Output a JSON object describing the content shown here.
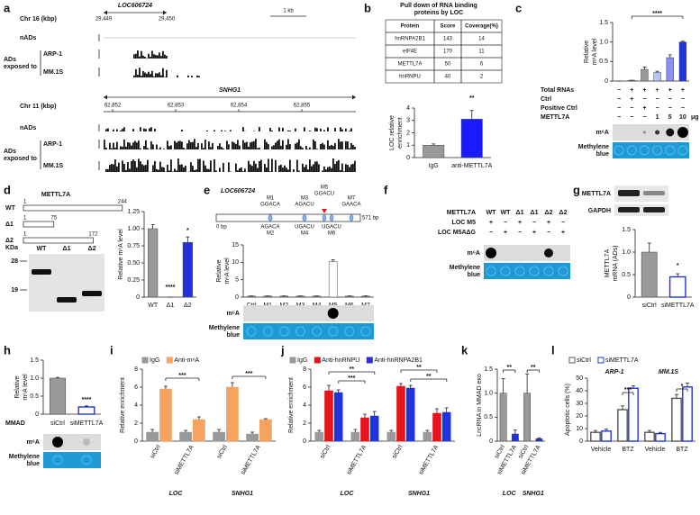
{
  "a": {
    "letter": "a",
    "gene1": "LOC606724",
    "chr1": "Chr 16 (kbp)",
    "coords1": [
      "29,449",
      "29,450"
    ],
    "scale": "1 kb",
    "tracks1": {
      "nads": "nADs",
      "ads": [
        "ADs",
        "exposed to"
      ],
      "lines": [
        "ARP-1",
        "MM.1S"
      ]
    },
    "gene2": "SNHG1",
    "chr2": "Chr 11 (kbp)",
    "coords2": [
      "62,852",
      "62,853",
      "62,854",
      "62,855"
    ],
    "tracks2": {
      "nads": "nADs",
      "ads": [
        "ADs",
        "exposed to"
      ],
      "lines": [
        "ARP-1",
        "MM.1S"
      ]
    }
  },
  "b": {
    "letter": "b",
    "title": [
      "Pull down of RNA binding",
      "proteins by LOC"
    ],
    "table": {
      "header": [
        "Protein",
        "Score",
        "Coverage(%)"
      ],
      "rows": [
        [
          "hnRNPA2B1",
          143,
          14
        ],
        [
          "eIF4E",
          170,
          11
        ],
        [
          "METTL7A",
          50,
          6
        ],
        [
          "hnRNPU",
          40,
          2
        ]
      ]
    },
    "chart": {
      "type": "bar",
      "ylabel": [
        "LOC relative",
        "enrichment"
      ],
      "categories": [
        "IgG",
        "anti-METTL7A"
      ],
      "values": [
        1,
        3.1
      ],
      "errors": [
        0.1,
        0.7
      ],
      "colors": [
        "#999999",
        "#1a1aff"
      ],
      "ylim": [
        0,
        4
      ],
      "yticks": [
        0,
        1,
        2,
        3,
        4
      ],
      "annotations": [
        "**"
      ]
    }
  },
  "c": {
    "letter": "c",
    "chart": {
      "type": "bar",
      "ylabel": [
        "Relative",
        "m⁶A level"
      ],
      "values": [
        0,
        0.02,
        0.3,
        0.22,
        0.6,
        1.0
      ],
      "errors": [
        0,
        0,
        0.06,
        0.03,
        0.07,
        0.02
      ],
      "colors": [
        "#999999",
        "#999999",
        "#999999",
        "#b7c5ee",
        "#8a8ff0",
        "#2233dd"
      ],
      "ylim": [
        0,
        1.5
      ],
      "yticks": [
        0,
        0.5,
        {
          "value": 1,
          "label": "1.0"
        },
        1.5
      ],
      "annotations": [
        "****"
      ]
    },
    "conditions": [
      {
        "label": "Total RNAs",
        "cells": [
          "−",
          "+",
          "+",
          "+",
          "+",
          "+"
        ]
      },
      {
        "label": "Ctrl",
        "cells": [
          "−",
          "+",
          "−",
          "−",
          "−",
          "−"
        ]
      },
      {
        "label": "Positive Ctrl",
        "cells": [
          "−",
          "−",
          "+",
          "−",
          "−",
          "−"
        ]
      },
      {
        "label": "METTL7A",
        "cells": [
          "−",
          "−",
          "−",
          "1",
          "5",
          "10"
        ]
      }
    ],
    "unit": "μg",
    "m6a": "m⁶A",
    "methylene": [
      "Methylene",
      "blue"
    ]
  },
  "d": {
    "letter": "d",
    "protein": "METTL7A",
    "constructs": [
      {
        "name": "WT",
        "start": 1,
        "end": 244
      },
      {
        "name": "Δ1",
        "start": 1,
        "end": 75
      },
      {
        "name": "Δ2",
        "start": 1,
        "end": 172
      }
    ],
    "kda": "KDa",
    "markers": [
      28,
      19
    ],
    "lanes": [
      "WT",
      "Δ1",
      "Δ2"
    ],
    "chart": {
      "type": "bar",
      "ylabel": [
        "Relative m⁶A level"
      ],
      "categories": [
        "WT",
        "Δ1",
        "Δ2"
      ],
      "values": [
        1,
        0,
        0.8
      ],
      "errors": [
        0.06,
        0,
        0.08
      ],
      "colors": [
        "#999999",
        "#999999",
        "#2233dd"
      ],
      "ylim": [
        0,
        1.25
      ],
      "yticks": [
        0,
        0.25,
        {
          "value": 0.5,
          "label": "0.50"
        },
        0.75,
        {
          "value": 1,
          "label": "1.00"
        },
        1.25
      ],
      "annotations": [
        "****",
        "*"
      ]
    }
  },
  "e": {
    "letter": "e",
    "gene": "LOC606724",
    "start": "0 bp",
    "end": "571 bp",
    "motifs": [
      {
        "name": "M1",
        "seq": "GGACA"
      },
      {
        "name": "M2",
        "seq": "AGACA"
      },
      {
        "name": "M3",
        "seq": "AGACU"
      },
      {
        "name": "M4",
        "seq": "UGACU"
      },
      {
        "name": "M5",
        "seq": "GGACU"
      },
      {
        "name": "M6",
        "seq": "UGACU"
      },
      {
        "name": "M7",
        "seq": "GAACA"
      }
    ],
    "chart": {
      "type": "bar",
      "ylabel": [
        "Relative",
        "m⁶A level"
      ],
      "categories": [
        "Ctrl",
        "M1",
        "M2",
        "M3",
        "M4",
        "M5",
        "M6",
        "M7"
      ],
      "values": [
        0.3,
        0.3,
        0.3,
        0.3,
        0.3,
        10.2,
        0.3,
        0.3
      ],
      "errors": [
        0.05,
        0.05,
        0.05,
        0.05,
        0.05,
        0.5,
        0.05,
        0.05
      ],
      "colors": [
        "#888888",
        "#888888",
        "#888888",
        "#888888",
        "#888888",
        "#ffffff",
        "#888888",
        "#888888"
      ],
      "ylim": [
        0,
        15
      ],
      "yticks": [
        0,
        5,
        10,
        15
      ]
    },
    "m6a": "m⁶A",
    "methylene": [
      "Methylene",
      "blue"
    ]
  },
  "f": {
    "letter": "f",
    "conditions": [
      {
        "label": "METTL7A",
        "cells": [
          "WT",
          "WT",
          "Δ1",
          "Δ1",
          "Δ2",
          "Δ2"
        ]
      },
      {
        "label": "LOC M5",
        "cells": [
          "+",
          "−",
          "+",
          "−",
          "+",
          "−"
        ]
      },
      {
        "label": "LOC M5AΔG",
        "cells": [
          "−",
          "+",
          "−",
          "+",
          "−",
          "+"
        ]
      }
    ],
    "m6a": "m⁶A",
    "methylene": [
      "Methylene",
      "blue"
    ]
  },
  "g": {
    "letter": "g",
    "blot": [
      "METTL7A",
      "GAPDH"
    ],
    "chart": {
      "type": "bar",
      "ylabel": [
        "METTL7A",
        "mRNA (ADs)"
      ],
      "categories": [
        "siCtrl",
        "siMETTL7A"
      ],
      "values": [
        1,
        0.45
      ],
      "errors": [
        0.2,
        0.07
      ],
      "colors": [
        "#999999",
        "#2233dd"
      ],
      "hollow": [
        false,
        true
      ],
      "ylim": [
        0,
        1.5
      ],
      "yticks": [
        0,
        0.5,
        {
          "value": 1,
          "label": "1.0"
        },
        1.5
      ],
      "annotations": [
        "*"
      ]
    }
  },
  "h": {
    "letter": "h",
    "sample": "MMAD",
    "chart": {
      "type": "bar",
      "ylabel": [
        "Relative",
        "m⁶A level"
      ],
      "categories": [
        "siCtrl",
        "siMETTL7A"
      ],
      "values": [
        1,
        0.2
      ],
      "errors": [
        0.02,
        0.03
      ],
      "colors": [
        "#999999",
        "#2233dd"
      ],
      "hollow": [
        false,
        true
      ],
      "ylim": [
        0,
        1.5
      ],
      "yticks": [
        0,
        0.5,
        {
          "value": 1,
          "label": "1.0"
        },
        1.5
      ],
      "annotations": [
        "****"
      ]
    },
    "m6a": "m⁶A",
    "methylene": [
      "Methylene",
      "blue"
    ]
  },
  "i": {
    "letter": "i",
    "chart": {
      "type": "bar",
      "ylabel": "Relative enrichment",
      "groups": [
        "LOC",
        "SNHG1"
      ],
      "categories": [
        "siCtrl",
        "siMETTL7A",
        "siCtrl",
        "siMETTL7A"
      ],
      "series": [
        {
          "name": "IgG",
          "color": "#999999",
          "values": [
            1,
            1,
            1,
            0.8
          ],
          "errors": [
            0.3,
            0.2,
            0.3,
            0.2
          ]
        },
        {
          "name": "Anti-m⁶A",
          "color": "#f4a460",
          "values": [
            5.8,
            2.4,
            6,
            2.4
          ],
          "errors": [
            0.3,
            0.3,
            0.5,
            0.1
          ]
        }
      ],
      "ylim": [
        0,
        8
      ],
      "yticks": [
        0,
        2,
        4,
        6,
        8
      ],
      "annotations": [
        "***",
        "***"
      ]
    }
  },
  "j": {
    "letter": "j",
    "chart": {
      "type": "bar",
      "ylabel": "Relative enrichment",
      "groups": [
        "LOC",
        "SNHG1"
      ],
      "categories": [
        "siCtrl",
        "siMETTL7A",
        "siCtrl",
        "siMETTL7A"
      ],
      "series": [
        {
          "name": "IgG",
          "color": "#999999",
          "values": [
            1,
            1,
            1,
            1
          ],
          "errors": [
            0.2,
            0.3,
            0.2,
            0.2
          ]
        },
        {
          "name": "Anti-hnRNPU",
          "color": "#e8141c",
          "values": [
            5.6,
            2.6,
            6.1,
            3.1
          ],
          "errors": [
            0.6,
            0.4,
            0.3,
            0.5
          ]
        },
        {
          "name": "Anti-hnRNPA2B1",
          "color": "#2233dd",
          "values": [
            5.4,
            2.8,
            5.9,
            3.2
          ],
          "errors": [
            0.3,
            0.5,
            0.3,
            0.5
          ]
        }
      ],
      "ylim": [
        0,
        8
      ],
      "yticks": [
        0,
        2,
        4,
        6,
        8
      ],
      "annotations": [
        "**",
        "***",
        "**",
        "**"
      ]
    }
  },
  "k": {
    "letter": "k",
    "chart": {
      "type": "bar",
      "ylabel": "LncRNA in MMAD exo",
      "groups": [
        "LOC",
        "SNHG1"
      ],
      "categories": [
        "siCtrl",
        "siMETTL7A",
        "siCtrl",
        "siMETTL7A"
      ],
      "values": [
        1,
        0.15,
        1,
        0.05
      ],
      "errors": [
        0.3,
        0.08,
        0.4,
        0.02
      ],
      "colors": [
        "#999999",
        "#2233dd",
        "#999999",
        "#2233dd"
      ],
      "ylim": [
        0,
        1.5
      ],
      "yticks": [
        0,
        0.5,
        {
          "value": 1,
          "label": "1.0"
        },
        1.5
      ],
      "annotations": [
        "**",
        "**"
      ]
    }
  },
  "l": {
    "letter": "l",
    "chart": {
      "type": "bar",
      "ylabel": "Apoptotic cells (%)",
      "groups": [
        "ARP-1",
        "MM.1S"
      ],
      "categories": [
        "Vehicle",
        "BTZ",
        "Vehicle",
        "BTZ"
      ],
      "hollow": true,
      "series": [
        {
          "name": "siCtrl",
          "color": "#555555",
          "values": [
            7,
            25,
            7,
            34
          ],
          "errors": [
            1.5,
            3,
            1.5,
            3
          ]
        },
        {
          "name": "siMETTL7A",
          "color": "#2233dd",
          "values": [
            8,
            42,
            6,
            43
          ],
          "errors": [
            1.5,
            2,
            1,
            3
          ]
        }
      ],
      "ylim": [
        0,
        50
      ],
      "yticks": [
        0,
        10,
        20,
        30,
        40,
        50
      ],
      "annotations": [
        "***",
        "*"
      ]
    }
  }
}
